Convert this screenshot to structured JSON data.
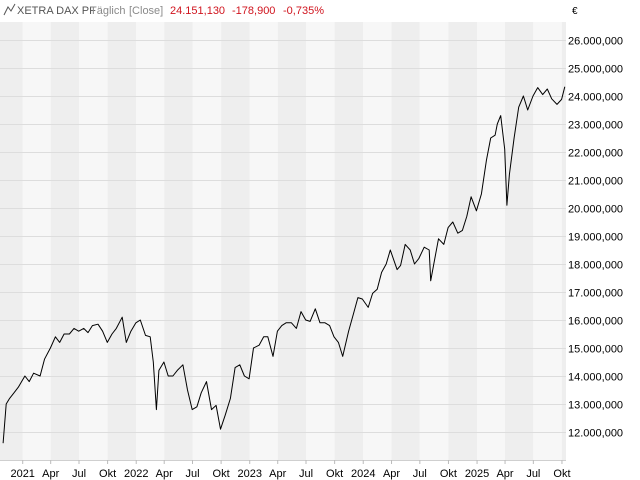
{
  "header": {
    "title": "XETRA DAX PF",
    "interval": "Täglich",
    "price_type": "[Close]",
    "last": "24.151,130",
    "change": "-178,900",
    "change_pct": "-0,735%"
  },
  "colors": {
    "line": "#000000",
    "band_light": "#f7f7f7",
    "band_dark": "#eeeeee",
    "grid": "#dddddd",
    "negative": "#d0141e"
  },
  "chart_data": {
    "type": "line",
    "currency": "€",
    "grid": true,
    "ylim": [
      11500000,
      26500000
    ],
    "y_ticks": [
      {
        "value": 26000000,
        "label": "26.000,000"
      },
      {
        "value": 25000000,
        "label": "25.000,000"
      },
      {
        "value": 24000000,
        "label": "24.000,000"
      },
      {
        "value": 23000000,
        "label": "23.000,000"
      },
      {
        "value": 22000000,
        "label": "22.000,000"
      },
      {
        "value": 21000000,
        "label": "21.000,000"
      },
      {
        "value": 20000000,
        "label": "20.000,000"
      },
      {
        "value": 19000000,
        "label": "19.000,000"
      },
      {
        "value": 18000000,
        "label": "18.000,000"
      },
      {
        "value": 17000000,
        "label": "17.000,000"
      },
      {
        "value": 16000000,
        "label": "16.000,000"
      },
      {
        "value": 15000000,
        "label": "15.000,000"
      },
      {
        "value": 14000000,
        "label": "14.000,000"
      },
      {
        "value": 13000000,
        "label": "13.000,000"
      },
      {
        "value": 12000000,
        "label": "12.000,000"
      }
    ],
    "x_range": [
      "2020-10-20",
      "2025-10-14"
    ],
    "x_ticks": [
      {
        "date": "2021-01-01",
        "label": "2021"
      },
      {
        "date": "2021-04-01",
        "label": "Apr"
      },
      {
        "date": "2021-07-01",
        "label": "Jul"
      },
      {
        "date": "2021-10-01",
        "label": "Okt"
      },
      {
        "date": "2022-01-01",
        "label": "2022"
      },
      {
        "date": "2022-04-01",
        "label": "Apr"
      },
      {
        "date": "2022-07-01",
        "label": "Jul"
      },
      {
        "date": "2022-10-01",
        "label": "Okt"
      },
      {
        "date": "2023-01-01",
        "label": "2023"
      },
      {
        "date": "2023-04-01",
        "label": "Apr"
      },
      {
        "date": "2023-07-01",
        "label": "Jul"
      },
      {
        "date": "2023-10-01",
        "label": "Okt"
      },
      {
        "date": "2024-01-01",
        "label": "2024"
      },
      {
        "date": "2024-04-01",
        "label": "Apr"
      },
      {
        "date": "2024-07-01",
        "label": "Jul"
      },
      {
        "date": "2024-10-01",
        "label": "Okt"
      },
      {
        "date": "2025-01-01",
        "label": "2025"
      },
      {
        "date": "2025-04-01",
        "label": "Apr"
      },
      {
        "date": "2025-07-01",
        "label": "Jul"
      },
      {
        "date": "2025-10-01",
        "label": "Okt"
      }
    ],
    "series": [
      {
        "x": [
          "2020-10-30",
          "2020-11-09",
          "2020-11-20",
          "2020-12-04",
          "2020-12-18",
          "2021-01-08",
          "2021-01-22",
          "2021-02-05",
          "2021-02-26",
          "2021-03-12",
          "2021-03-31",
          "2021-04-16",
          "2021-04-30",
          "2021-05-14",
          "2021-05-31",
          "2021-06-15",
          "2021-06-30",
          "2021-07-16",
          "2021-07-30",
          "2021-08-13",
          "2021-08-31",
          "2021-09-15",
          "2021-09-30",
          "2021-10-15",
          "2021-10-29",
          "2021-11-17",
          "2021-11-30",
          "2021-12-15",
          "2021-12-31",
          "2022-01-14",
          "2022-01-31",
          "2022-02-15",
          "2022-02-25",
          "2022-03-07",
          "2022-03-15",
          "2022-03-31",
          "2022-04-14",
          "2022-04-29",
          "2022-05-13",
          "2022-05-31",
          "2022-06-15",
          "2022-06-30",
          "2022-07-15",
          "2022-07-29",
          "2022-08-15",
          "2022-08-31",
          "2022-09-15",
          "2022-09-29",
          "2022-10-14",
          "2022-10-31",
          "2022-11-15",
          "2022-11-30",
          "2022-12-15",
          "2022-12-30",
          "2023-01-13",
          "2023-01-31",
          "2023-02-15",
          "2023-02-28",
          "2023-03-17",
          "2023-03-31",
          "2023-04-14",
          "2023-04-28",
          "2023-05-15",
          "2023-05-31",
          "2023-06-15",
          "2023-06-30",
          "2023-07-14",
          "2023-07-31",
          "2023-08-15",
          "2023-08-31",
          "2023-09-15",
          "2023-09-29",
          "2023-10-13",
          "2023-10-27",
          "2023-11-15",
          "2023-11-30",
          "2023-12-15",
          "2023-12-29",
          "2024-01-17",
          "2024-01-31",
          "2024-02-15",
          "2024-02-29",
          "2024-03-15",
          "2024-03-28",
          "2024-04-19",
          "2024-04-30",
          "2024-05-15",
          "2024-05-31",
          "2024-06-14",
          "2024-06-28",
          "2024-07-15",
          "2024-07-31",
          "2024-08-05",
          "2024-08-15",
          "2024-08-30",
          "2024-09-16",
          "2024-09-30",
          "2024-10-15",
          "2024-10-31",
          "2024-11-15",
          "2024-11-29",
          "2024-12-13",
          "2024-12-30",
          "2025-01-15",
          "2025-01-31",
          "2025-02-14",
          "2025-02-28",
          "2025-03-07",
          "2025-03-18",
          "2025-03-31",
          "2025-04-07",
          "2025-04-15",
          "2025-04-30",
          "2025-05-15",
          "2025-05-30",
          "2025-06-13",
          "2025-06-30",
          "2025-07-15",
          "2025-07-31",
          "2025-08-15",
          "2025-08-29",
          "2025-09-15",
          "2025-09-30",
          "2025-10-10"
        ],
        "y": [
          11600000,
          13000000,
          13200000,
          13400000,
          13600000,
          14000000,
          13800000,
          14100000,
          14000000,
          14600000,
          15000000,
          15400000,
          15200000,
          15500000,
          15500000,
          15700000,
          15600000,
          15700000,
          15550000,
          15800000,
          15850000,
          15600000,
          15200000,
          15500000,
          15700000,
          16100000,
          15200000,
          15600000,
          15900000,
          16000000,
          15450000,
          15400000,
          14500000,
          12800000,
          14200000,
          14500000,
          14000000,
          14000000,
          14200000,
          14400000,
          13500000,
          12800000,
          12900000,
          13400000,
          13800000,
          12800000,
          12950000,
          12100000,
          12600000,
          13200000,
          14300000,
          14400000,
          14000000,
          13900000,
          15000000,
          15100000,
          15400000,
          15400000,
          14700000,
          15600000,
          15800000,
          15900000,
          15900000,
          15700000,
          16300000,
          16000000,
          15950000,
          16400000,
          15900000,
          15900000,
          15800000,
          15400000,
          15200000,
          14700000,
          15600000,
          16200000,
          16800000,
          16750000,
          16450000,
          16950000,
          17100000,
          17700000,
          18000000,
          18500000,
          17800000,
          17950000,
          18700000,
          18500000,
          18000000,
          18200000,
          18600000,
          18500000,
          17400000,
          18000000,
          18900000,
          18700000,
          19300000,
          19500000,
          19100000,
          19200000,
          19700000,
          20400000,
          19900000,
          20500000,
          21700000,
          22500000,
          22600000,
          23000000,
          23300000,
          22100000,
          20100000,
          21200000,
          22500000,
          23600000,
          24000000,
          23500000,
          24000000,
          24300000,
          24050000,
          24250000,
          23900000,
          23700000,
          23880000,
          24330000
        ]
      }
    ]
  }
}
